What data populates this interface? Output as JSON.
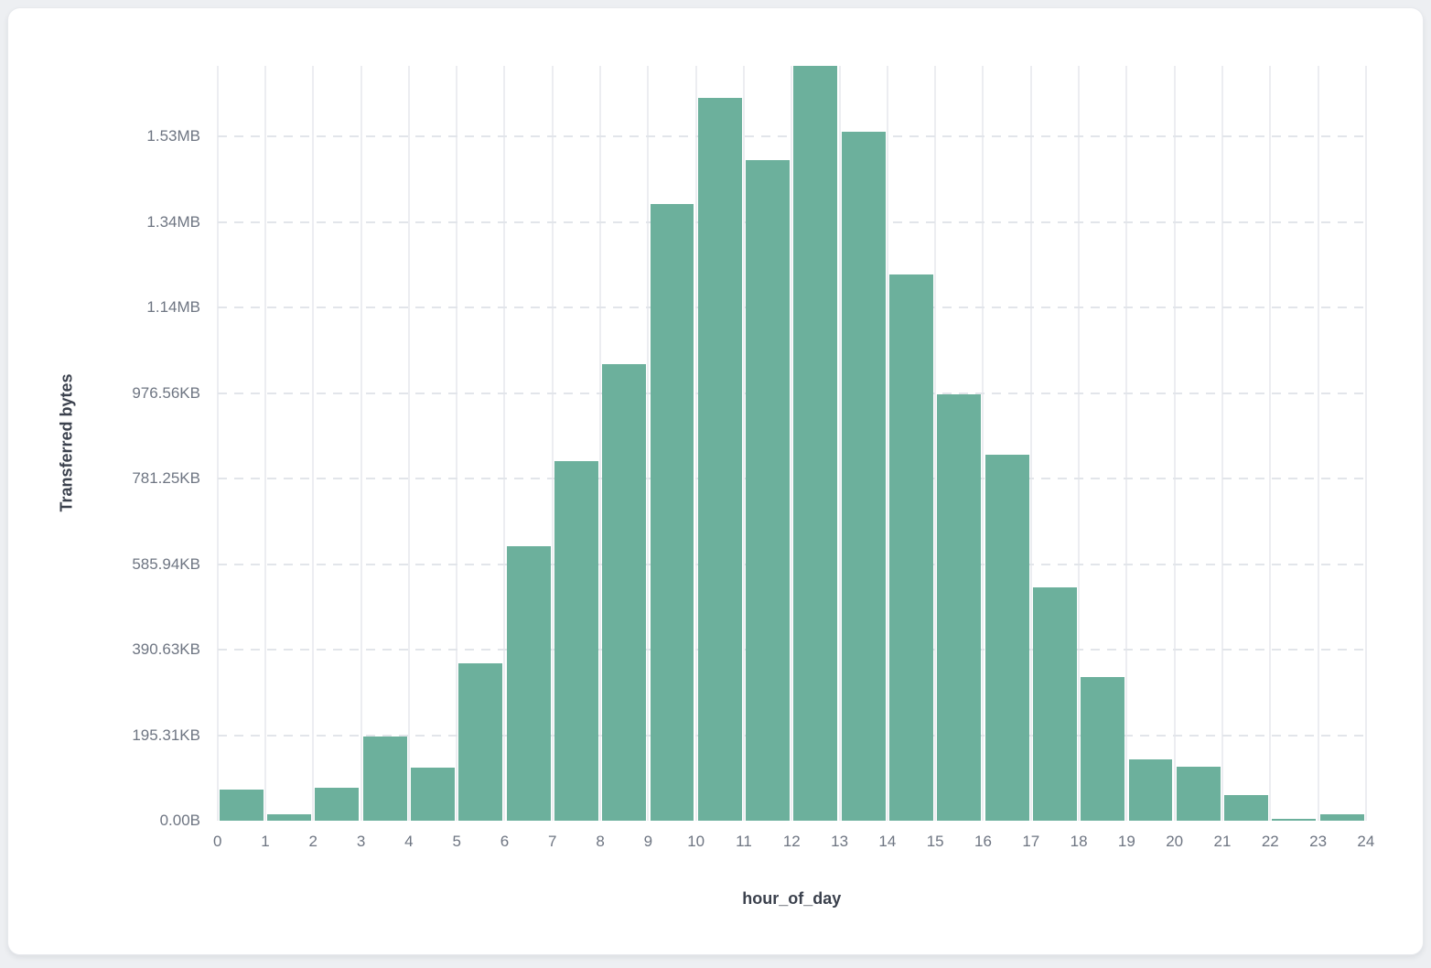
{
  "chart_data": {
    "type": "histogram",
    "title": "",
    "xlabel": "hour_of_day",
    "ylabel": "Transferred bytes",
    "categories": [
      0,
      1,
      2,
      3,
      4,
      5,
      6,
      7,
      8,
      9,
      10,
      11,
      12,
      13,
      14,
      15,
      16,
      17,
      18,
      19,
      20,
      21,
      22,
      23
    ],
    "values_bytes": [
      73000,
      14000,
      76000,
      196000,
      125000,
      369000,
      642000,
      840000,
      1068000,
      1442000,
      1690000,
      1544000,
      1765000,
      1612000,
      1278000,
      997000,
      856000,
      546000,
      335000,
      143000,
      127000,
      59000,
      5000,
      14000
    ],
    "x_tick_labels": [
      "0",
      "1",
      "2",
      "3",
      "4",
      "5",
      "6",
      "7",
      "8",
      "9",
      "10",
      "11",
      "12",
      "13",
      "14",
      "15",
      "16",
      "17",
      "18",
      "19",
      "20",
      "21",
      "22",
      "23",
      "24"
    ],
    "y_tick_labels": [
      "0.00B",
      "195.31KB",
      "390.63KB",
      "585.94KB",
      "781.25KB",
      "976.56KB",
      "1.14MB",
      "1.34MB",
      "1.53MB"
    ],
    "y_tick_step_bytes": 200000,
    "y_max_bytes": 1765000,
    "xlim": [
      0,
      24
    ],
    "grid": true,
    "legend_position": "none",
    "bar_color": "#6CB09C",
    "background_color": "#ffffff",
    "page_background_color": "#edeff2"
  }
}
